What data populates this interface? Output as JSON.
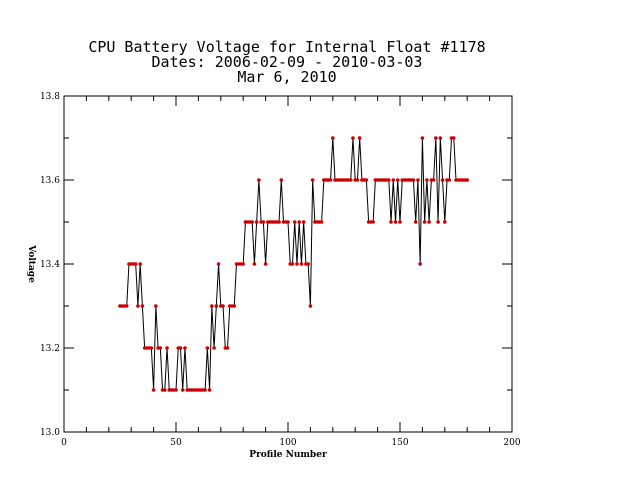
{
  "chart_data": {
    "type": "line",
    "title_lines": [
      "CPU Battery Voltage for Internal Float #1178",
      "Dates:  2006-02-09 -  2010-03-03",
      "Mar  6, 2010"
    ],
    "xlabel": "Profile Number",
    "ylabel": "Voltage",
    "xlim": [
      0,
      200
    ],
    "ylim": [
      13.0,
      13.8
    ],
    "xticks": [
      0,
      50,
      100,
      150,
      200
    ],
    "yticks": [
      13.0,
      13.2,
      13.4,
      13.6,
      13.8
    ],
    "xtick_labels": [
      "0",
      "50",
      "100",
      "150",
      "200"
    ],
    "ytick_labels": [
      "13.0",
      "13.2",
      "13.4",
      "13.6",
      "13.8"
    ],
    "line_color": "#000000",
    "marker_color": "#cc0000",
    "x": [
      25,
      26,
      27,
      28,
      29,
      30,
      31,
      32,
      33,
      34,
      35,
      36,
      37,
      38,
      39,
      40,
      41,
      42,
      43,
      44,
      45,
      46,
      47,
      48,
      49,
      50,
      51,
      52,
      53,
      54,
      55,
      56,
      57,
      58,
      59,
      60,
      61,
      62,
      63,
      64,
      65,
      66,
      67,
      68,
      69,
      70,
      71,
      72,
      73,
      74,
      75,
      76,
      77,
      78,
      79,
      80,
      81,
      82,
      83,
      84,
      85,
      86,
      87,
      88,
      89,
      90,
      91,
      92,
      93,
      94,
      95,
      96,
      97,
      98,
      99,
      100,
      101,
      102,
      103,
      104,
      105,
      106,
      107,
      108,
      109,
      110,
      111,
      112,
      113,
      114,
      115,
      116,
      117,
      118,
      119,
      120,
      121,
      122,
      123,
      124,
      125,
      126,
      127,
      128,
      129,
      130,
      131,
      132,
      133,
      134,
      135,
      136,
      137,
      138,
      139,
      140,
      141,
      142,
      143,
      144,
      145,
      146,
      147,
      148,
      149,
      150,
      151,
      152,
      153,
      154,
      155,
      156,
      157,
      158,
      159,
      160,
      161,
      162,
      163,
      164,
      165,
      166,
      167,
      168,
      169,
      170,
      171,
      172,
      173,
      174,
      175,
      176,
      177,
      178,
      179,
      180
    ],
    "y": [
      13.3,
      13.3,
      13.3,
      13.3,
      13.4,
      13.4,
      13.4,
      13.4,
      13.3,
      13.4,
      13.3,
      13.2,
      13.2,
      13.2,
      13.2,
      13.1,
      13.3,
      13.2,
      13.2,
      13.1,
      13.1,
      13.2,
      13.1,
      13.1,
      13.1,
      13.1,
      13.2,
      13.2,
      13.1,
      13.2,
      13.1,
      13.1,
      13.1,
      13.1,
      13.1,
      13.1,
      13.1,
      13.1,
      13.1,
      13.2,
      13.1,
      13.3,
      13.2,
      13.3,
      13.4,
      13.3,
      13.3,
      13.2,
      13.2,
      13.3,
      13.3,
      13.3,
      13.4,
      13.4,
      13.4,
      13.4,
      13.5,
      13.5,
      13.5,
      13.5,
      13.4,
      13.5,
      13.6,
      13.5,
      13.5,
      13.4,
      13.5,
      13.5,
      13.5,
      13.5,
      13.5,
      13.5,
      13.6,
      13.5,
      13.5,
      13.5,
      13.4,
      13.4,
      13.5,
      13.4,
      13.5,
      13.4,
      13.5,
      13.4,
      13.4,
      13.3,
      13.6,
      13.5,
      13.5,
      13.5,
      13.5,
      13.6,
      13.6,
      13.6,
      13.6,
      13.7,
      13.6,
      13.6,
      13.6,
      13.6,
      13.6,
      13.6,
      13.6,
      13.6,
      13.7,
      13.6,
      13.6,
      13.7,
      13.6,
      13.6,
      13.6,
      13.5,
      13.5,
      13.5,
      13.6,
      13.6,
      13.6,
      13.6,
      13.6,
      13.6,
      13.6,
      13.5,
      13.6,
      13.5,
      13.6,
      13.5,
      13.6,
      13.6,
      13.6,
      13.6,
      13.6,
      13.6,
      13.5,
      13.6,
      13.4,
      13.7,
      13.5,
      13.6,
      13.5,
      13.6,
      13.6,
      13.7,
      13.5,
      13.7,
      13.6,
      13.5,
      13.6,
      13.6,
      13.7,
      13.7,
      13.6,
      13.6,
      13.6,
      13.6,
      13.6,
      13.6
    ]
  }
}
